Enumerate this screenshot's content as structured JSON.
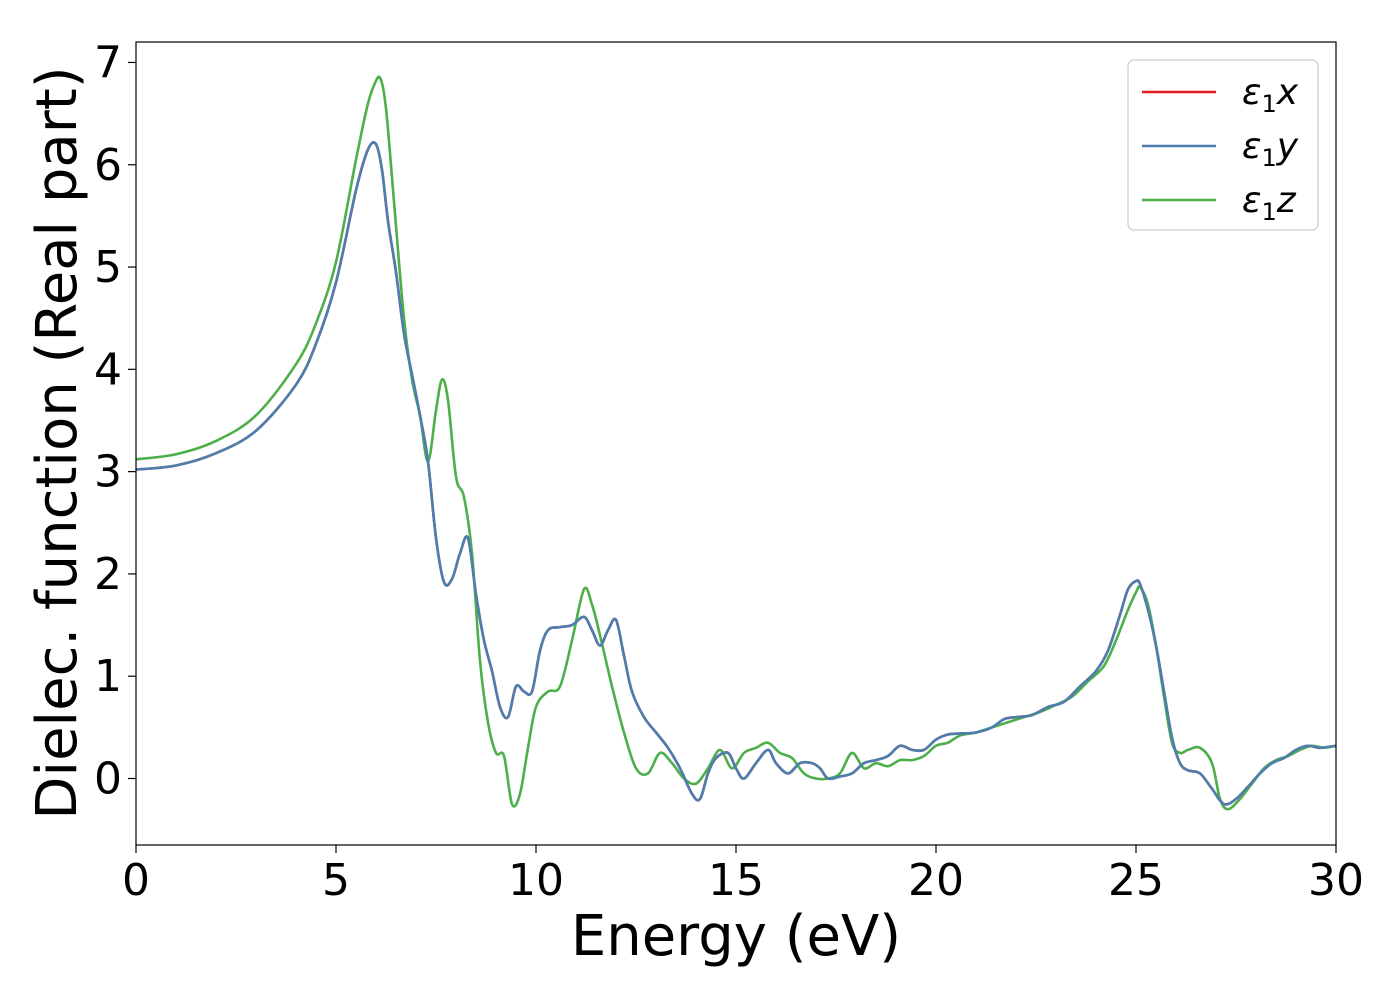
{
  "chart_data": {
    "type": "line",
    "xlabel": "Energy (eV)",
    "ylabel": "Dielec. function (Real part)",
    "xlim": [
      0,
      30
    ],
    "ylim": [
      -0.65,
      7.2
    ],
    "xticks": [
      0,
      5,
      10,
      15,
      20,
      25,
      30
    ],
    "yticks": [
      0,
      1,
      2,
      3,
      4,
      5,
      6,
      7
    ],
    "grid": false,
    "legend_position": "top-right",
    "series": [
      {
        "name": "x",
        "color": "#e41a1c",
        "x": [
          0,
          1,
          2,
          3,
          4,
          4.5,
          5,
          5.5,
          5.8,
          6,
          6.15,
          6.3,
          6.5,
          6.7,
          6.9,
          7.1,
          7.3,
          7.5,
          7.7,
          7.9,
          8.1,
          8.3,
          8.5,
          8.7,
          8.9,
          9.1,
          9.3,
          9.5,
          9.7,
          9.9,
          10.1,
          10.3,
          10.6,
          10.9,
          11.2,
          11.4,
          11.6,
          11.8,
          12,
          12.2,
          12.4,
          12.7,
          13,
          13.3,
          13.6,
          13.9,
          14.1,
          14.3,
          14.5,
          14.8,
          15,
          15.2,
          15.5,
          15.8,
          16,
          16.3,
          16.6,
          16.9,
          17.1,
          17.3,
          17.6,
          17.9,
          18.2,
          18.5,
          18.8,
          19.1,
          19.4,
          19.7,
          20,
          20.3,
          20.6,
          21,
          21.4,
          21.7,
          22,
          22.4,
          22.8,
          23.2,
          23.6,
          24,
          24.3,
          24.6,
          24.8,
          25,
          25.1,
          25.3,
          25.5,
          25.7,
          25.9,
          26.1,
          26.3,
          26.6,
          26.9,
          27.2,
          27.5,
          27.8,
          28.1,
          28.4,
          28.7,
          29,
          29.3,
          29.6,
          30
        ],
        "values": [
          3.02,
          3.06,
          3.18,
          3.4,
          3.85,
          4.25,
          4.85,
          5.75,
          6.15,
          6.2,
          5.95,
          5.45,
          4.95,
          4.35,
          3.95,
          3.55,
          3.1,
          2.35,
          1.92,
          1.95,
          2.2,
          2.35,
          1.8,
          1.35,
          1.05,
          0.7,
          0.6,
          0.9,
          0.85,
          0.85,
          1.25,
          1.45,
          1.48,
          1.5,
          1.58,
          1.45,
          1.3,
          1.45,
          1.55,
          1.2,
          0.85,
          0.6,
          0.45,
          0.3,
          0.1,
          -0.15,
          -0.2,
          0.05,
          0.2,
          0.25,
          0.1,
          0.0,
          0.15,
          0.28,
          0.15,
          0.05,
          0.15,
          0.15,
          0.1,
          0.0,
          0.02,
          0.05,
          0.15,
          0.18,
          0.22,
          0.32,
          0.28,
          0.28,
          0.38,
          0.43,
          0.44,
          0.45,
          0.5,
          0.58,
          0.6,
          0.62,
          0.7,
          0.75,
          0.9,
          1.05,
          1.25,
          1.6,
          1.85,
          1.93,
          1.9,
          1.65,
          1.3,
          0.85,
          0.4,
          0.15,
          0.08,
          0.05,
          -0.1,
          -0.25,
          -0.2,
          -0.08,
          0.05,
          0.15,
          0.2,
          0.28,
          0.32,
          0.3,
          0.32
        ]
      },
      {
        "name": "y",
        "color": "#4a7fb0",
        "x": [
          0,
          1,
          2,
          3,
          4,
          4.5,
          5,
          5.5,
          5.8,
          6,
          6.15,
          6.3,
          6.5,
          6.7,
          6.9,
          7.1,
          7.3,
          7.5,
          7.7,
          7.9,
          8.1,
          8.3,
          8.5,
          8.7,
          8.9,
          9.1,
          9.3,
          9.5,
          9.7,
          9.9,
          10.1,
          10.3,
          10.6,
          10.9,
          11.2,
          11.4,
          11.6,
          11.8,
          12,
          12.2,
          12.4,
          12.7,
          13,
          13.3,
          13.6,
          13.9,
          14.1,
          14.3,
          14.5,
          14.8,
          15,
          15.2,
          15.5,
          15.8,
          16,
          16.3,
          16.6,
          16.9,
          17.1,
          17.3,
          17.6,
          17.9,
          18.2,
          18.5,
          18.8,
          19.1,
          19.4,
          19.7,
          20,
          20.3,
          20.6,
          21,
          21.4,
          21.7,
          22,
          22.4,
          22.8,
          23.2,
          23.6,
          24,
          24.3,
          24.6,
          24.8,
          25,
          25.1,
          25.3,
          25.5,
          25.7,
          25.9,
          26.1,
          26.3,
          26.6,
          26.9,
          27.2,
          27.5,
          27.8,
          28.1,
          28.4,
          28.7,
          29,
          29.3,
          29.6,
          30
        ],
        "values": [
          3.02,
          3.06,
          3.18,
          3.4,
          3.85,
          4.25,
          4.85,
          5.75,
          6.15,
          6.2,
          5.95,
          5.45,
          4.95,
          4.35,
          3.95,
          3.55,
          3.1,
          2.35,
          1.92,
          1.95,
          2.2,
          2.35,
          1.8,
          1.35,
          1.05,
          0.7,
          0.6,
          0.9,
          0.85,
          0.85,
          1.25,
          1.45,
          1.48,
          1.5,
          1.58,
          1.45,
          1.3,
          1.45,
          1.55,
          1.2,
          0.85,
          0.6,
          0.45,
          0.3,
          0.1,
          -0.15,
          -0.2,
          0.05,
          0.2,
          0.25,
          0.1,
          0.0,
          0.15,
          0.28,
          0.15,
          0.05,
          0.15,
          0.15,
          0.1,
          0.0,
          0.02,
          0.05,
          0.15,
          0.18,
          0.22,
          0.32,
          0.28,
          0.28,
          0.38,
          0.43,
          0.44,
          0.45,
          0.5,
          0.58,
          0.6,
          0.62,
          0.7,
          0.75,
          0.9,
          1.05,
          1.25,
          1.6,
          1.85,
          1.93,
          1.9,
          1.65,
          1.3,
          0.85,
          0.4,
          0.15,
          0.08,
          0.05,
          -0.1,
          -0.25,
          -0.2,
          -0.08,
          0.05,
          0.15,
          0.2,
          0.28,
          0.32,
          0.3,
          0.32
        ]
      },
      {
        "name": "z",
        "color": "#4daf4a",
        "x": [
          0,
          1,
          2,
          3,
          4,
          4.5,
          5,
          5.5,
          5.8,
          6,
          6.1,
          6.2,
          6.3,
          6.5,
          6.7,
          6.9,
          7.1,
          7.3,
          7.5,
          7.65,
          7.8,
          8,
          8.2,
          8.4,
          8.6,
          8.8,
          9,
          9.2,
          9.4,
          9.6,
          9.8,
          10,
          10.3,
          10.6,
          10.9,
          11.2,
          11.4,
          11.6,
          11.9,
          12.2,
          12.5,
          12.8,
          13.1,
          13.4,
          13.7,
          14,
          14.3,
          14.6,
          14.9,
          15.2,
          15.5,
          15.8,
          16.1,
          16.4,
          16.7,
          17,
          17.3,
          17.6,
          17.9,
          18.2,
          18.5,
          18.8,
          19.1,
          19.4,
          19.7,
          20,
          20.3,
          20.6,
          21,
          21.4,
          21.8,
          22.2,
          22.6,
          23,
          23.4,
          23.8,
          24.2,
          24.5,
          24.8,
          25,
          25.1,
          25.3,
          25.5,
          25.7,
          25.9,
          26.1,
          26.3,
          26.6,
          26.9,
          27.1,
          27.3,
          27.6,
          27.9,
          28.2,
          28.5,
          28.8,
          29.1,
          29.4,
          29.7,
          30
        ],
        "values": [
          3.12,
          3.17,
          3.3,
          3.55,
          4.05,
          4.45,
          5.05,
          6.05,
          6.6,
          6.82,
          6.85,
          6.7,
          6.35,
          5.4,
          4.5,
          3.9,
          3.55,
          3.1,
          3.6,
          3.9,
          3.7,
          2.95,
          2.75,
          2.2,
          1.15,
          0.55,
          0.25,
          0.22,
          -0.25,
          -0.15,
          0.3,
          0.7,
          0.85,
          0.9,
          1.35,
          1.85,
          1.7,
          1.4,
          0.9,
          0.45,
          0.1,
          0.05,
          0.25,
          0.15,
          0.0,
          -0.05,
          0.1,
          0.28,
          0.1,
          0.25,
          0.3,
          0.35,
          0.25,
          0.2,
          0.05,
          0.0,
          0.0,
          0.05,
          0.25,
          0.1,
          0.15,
          0.12,
          0.18,
          0.18,
          0.22,
          0.32,
          0.35,
          0.42,
          0.45,
          0.5,
          0.55,
          0.6,
          0.65,
          0.72,
          0.8,
          0.95,
          1.1,
          1.35,
          1.65,
          1.82,
          1.87,
          1.7,
          1.3,
          0.8,
          0.35,
          0.25,
          0.28,
          0.3,
          0.15,
          -0.2,
          -0.3,
          -0.2,
          -0.05,
          0.1,
          0.18,
          0.22,
          0.28,
          0.32,
          0.3,
          0.32
        ]
      }
    ]
  }
}
